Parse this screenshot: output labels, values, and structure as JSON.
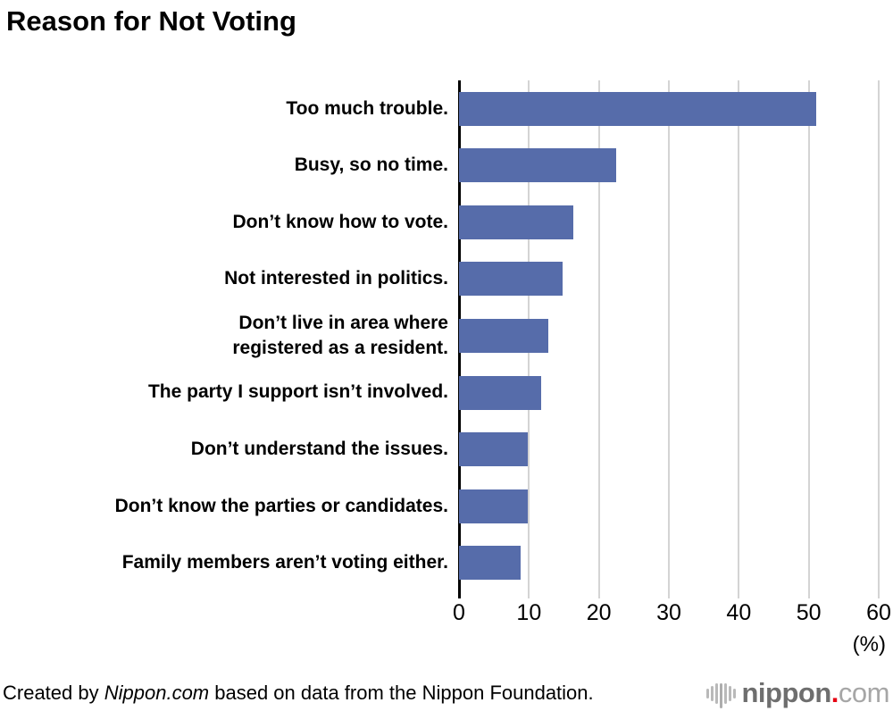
{
  "title": "Reason for Not Voting",
  "chart_data": {
    "type": "bar",
    "orientation": "horizontal",
    "title": "Reason for Not Voting",
    "categories": [
      "Too much trouble.",
      "Busy, so no time.",
      "Don’t know how to vote.",
      "Not interested in politics.",
      "Don’t live in area where\nregistered as a resident.",
      "The party I support isn’t involved.",
      "Don’t understand the issues.",
      "Don’t know the parties or candidates.",
      "Family members aren’t voting either."
    ],
    "values": [
      51.1,
      22.5,
      16.3,
      14.8,
      12.8,
      11.8,
      9.8,
      9.8,
      8.8
    ],
    "xlim": [
      0,
      60
    ],
    "x_ticks": [
      "0",
      "10",
      "20",
      "30",
      "40",
      "50",
      "60"
    ],
    "x_unit_label": "(%)",
    "xlabel": "",
    "ylabel": "",
    "grid": true,
    "legend": false,
    "bar_color": "#566caa",
    "grid_color": "#d4d4d4",
    "axis_color": "#000000"
  },
  "footer": {
    "credit_prefix": "Created by ",
    "credit_source": "Nippon.com",
    "credit_suffix": " based on data from the Nippon Foundation.",
    "logo": {
      "icon": "soundwave-icon",
      "text_bold": "nippon",
      "dot": ".",
      "text_light": "com",
      "dot_color": "#e60012"
    }
  },
  "colors": {
    "bar": "#566caa",
    "grid": "#d4d4d4",
    "axis": "#000000",
    "text": "#000000",
    "logo_icon_gray": "#b9b9b9",
    "logo_text_gray": "#6e6e6e",
    "logo_light_gray": "#a6a6a6",
    "logo_red": "#e60012"
  }
}
